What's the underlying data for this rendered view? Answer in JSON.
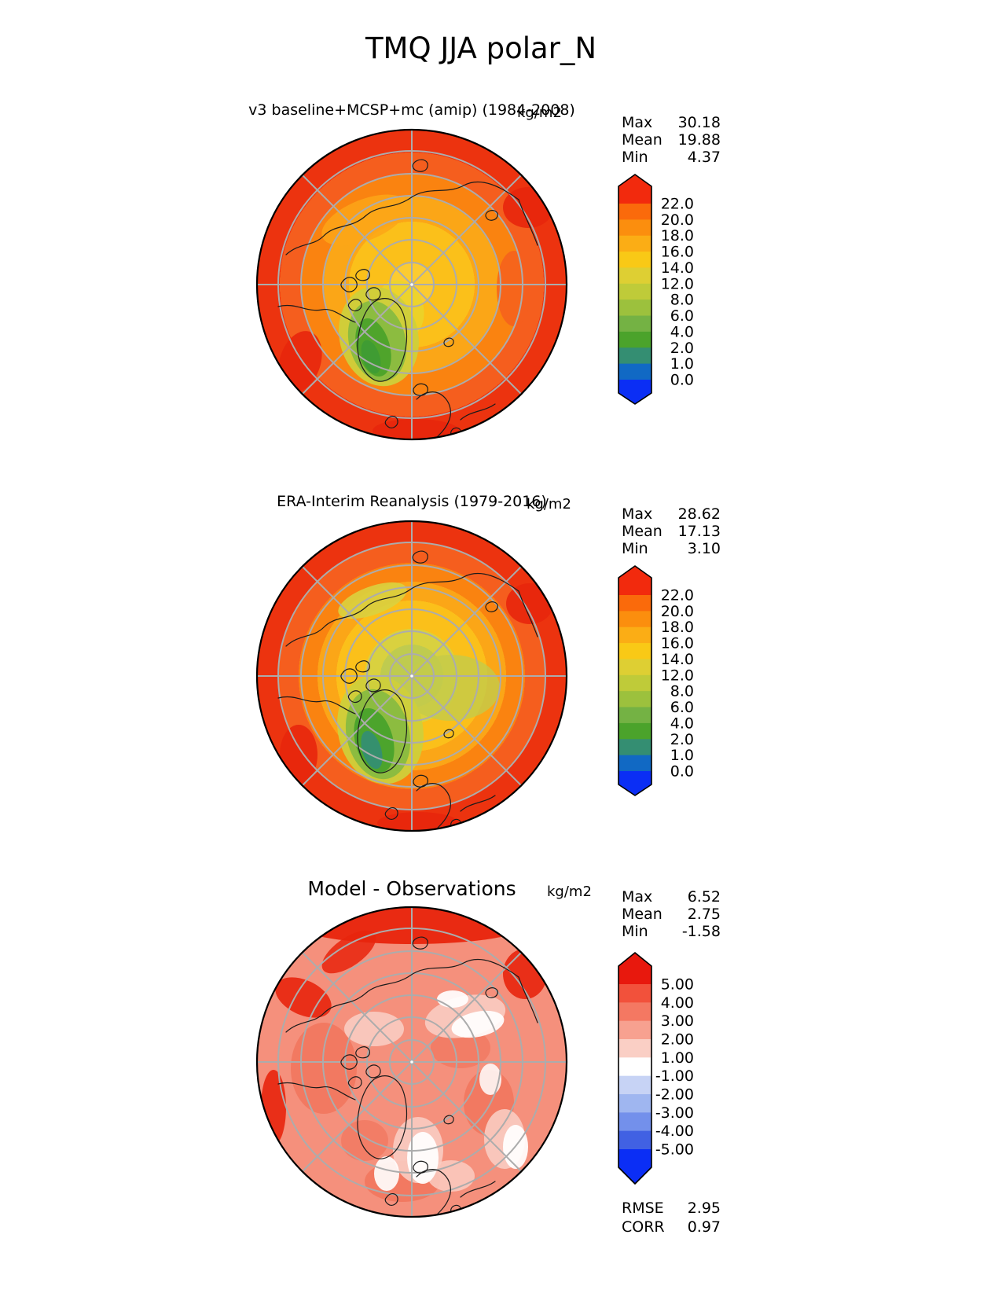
{
  "figure_title": "TMQ JJA polar_N",
  "panels": [
    {
      "title": "v3 baseline+MCSP+mc (amip) (1984-2008)",
      "units": "kg/m2",
      "stats": {
        "max_label": "Max",
        "max_value": "30.18",
        "mean_label": "Mean",
        "mean_value": "19.88",
        "min_label": "Min",
        "min_value": "4.37"
      }
    },
    {
      "title": "ERA-Interim Reanalysis (1979-2016)",
      "units": "kg/m2",
      "stats": {
        "max_label": "Max",
        "max_value": "28.62",
        "mean_label": "Mean",
        "mean_value": "17.13",
        "min_label": "Min",
        "min_value": "3.10"
      }
    },
    {
      "title": "Model - Observations",
      "units": "kg/m2",
      "stats": {
        "max_label": "Max",
        "max_value": "6.52",
        "mean_label": "Mean",
        "mean_value": "2.75",
        "min_label": "Min",
        "min_value": "-1.58"
      },
      "metrics": {
        "rmse_label": "RMSE",
        "rmse_value": "2.95",
        "corr_label": "CORR",
        "corr_value": "0.97"
      }
    }
  ],
  "colorbars": {
    "absolute": {
      "tick_labels": [
        "22.0",
        "20.0",
        "18.0",
        "16.0",
        "14.0",
        "12.0",
        "8.0",
        "6.0",
        "4.0",
        "2.0",
        "1.0",
        "0.0"
      ],
      "segment_colors": [
        "#FA6A0B",
        "#FB8E0E",
        "#FBAD15",
        "#F9C916",
        "#DECF33",
        "#BFCB39",
        "#9CC13D",
        "#74B244",
        "#4BA32B",
        "#348E72",
        "#1169C4"
      ],
      "extend_top_color": "#F22A0D",
      "extend_bottom_color": "#0B2EF5"
    },
    "difference": {
      "tick_labels": [
        "5.00",
        "4.00",
        "3.00",
        "2.00",
        "1.00",
        "-1.00",
        "-2.00",
        "-3.00",
        "-4.00",
        "-5.00"
      ],
      "segment_colors": [
        "#F2513B",
        "#F47862",
        "#F7A190",
        "#FACFC5",
        "#FFFFFF",
        "#C7D3F5",
        "#9FB6F0",
        "#7390EB",
        "#4161E3"
      ],
      "extend_top_color": "#E8180D",
      "extend_bottom_color": "#0B2EF5"
    }
  },
  "chart_data": {
    "type": "heatmap",
    "subtype": "polar_stereographic_contour_map_set",
    "projection": "North Polar Stereographic",
    "title": "TMQ JJA polar_N",
    "panels": [
      {
        "title": "v3 baseline+MCSP+mc (amip) (1984-2008)",
        "units": "kg/m2",
        "stats": {
          "max": 30.18,
          "mean": 19.88,
          "min": 4.37
        },
        "colorbar_levels": [
          0.0,
          1.0,
          2.0,
          4.0,
          6.0,
          8.0,
          12.0,
          14.0,
          16.0,
          18.0,
          20.0,
          22.0
        ],
        "colorbar_extend": "both"
      },
      {
        "title": "ERA-Interim Reanalysis (1979-2016)",
        "units": "kg/m2",
        "stats": {
          "max": 28.62,
          "mean": 17.13,
          "min": 3.1
        },
        "colorbar_levels": [
          0.0,
          1.0,
          2.0,
          4.0,
          6.0,
          8.0,
          12.0,
          14.0,
          16.0,
          18.0,
          20.0,
          22.0
        ],
        "colorbar_extend": "both"
      },
      {
        "title": "Model - Observations",
        "units": "kg/m2",
        "stats": {
          "max": 6.52,
          "mean": 2.75,
          "min": -1.58,
          "rmse": 2.95,
          "corr": 0.97
        },
        "colorbar_levels": [
          -5.0,
          -4.0,
          -3.0,
          -2.0,
          -1.0,
          1.0,
          2.0,
          3.0,
          4.0,
          5.0
        ],
        "colorbar_extend": "both"
      }
    ]
  }
}
